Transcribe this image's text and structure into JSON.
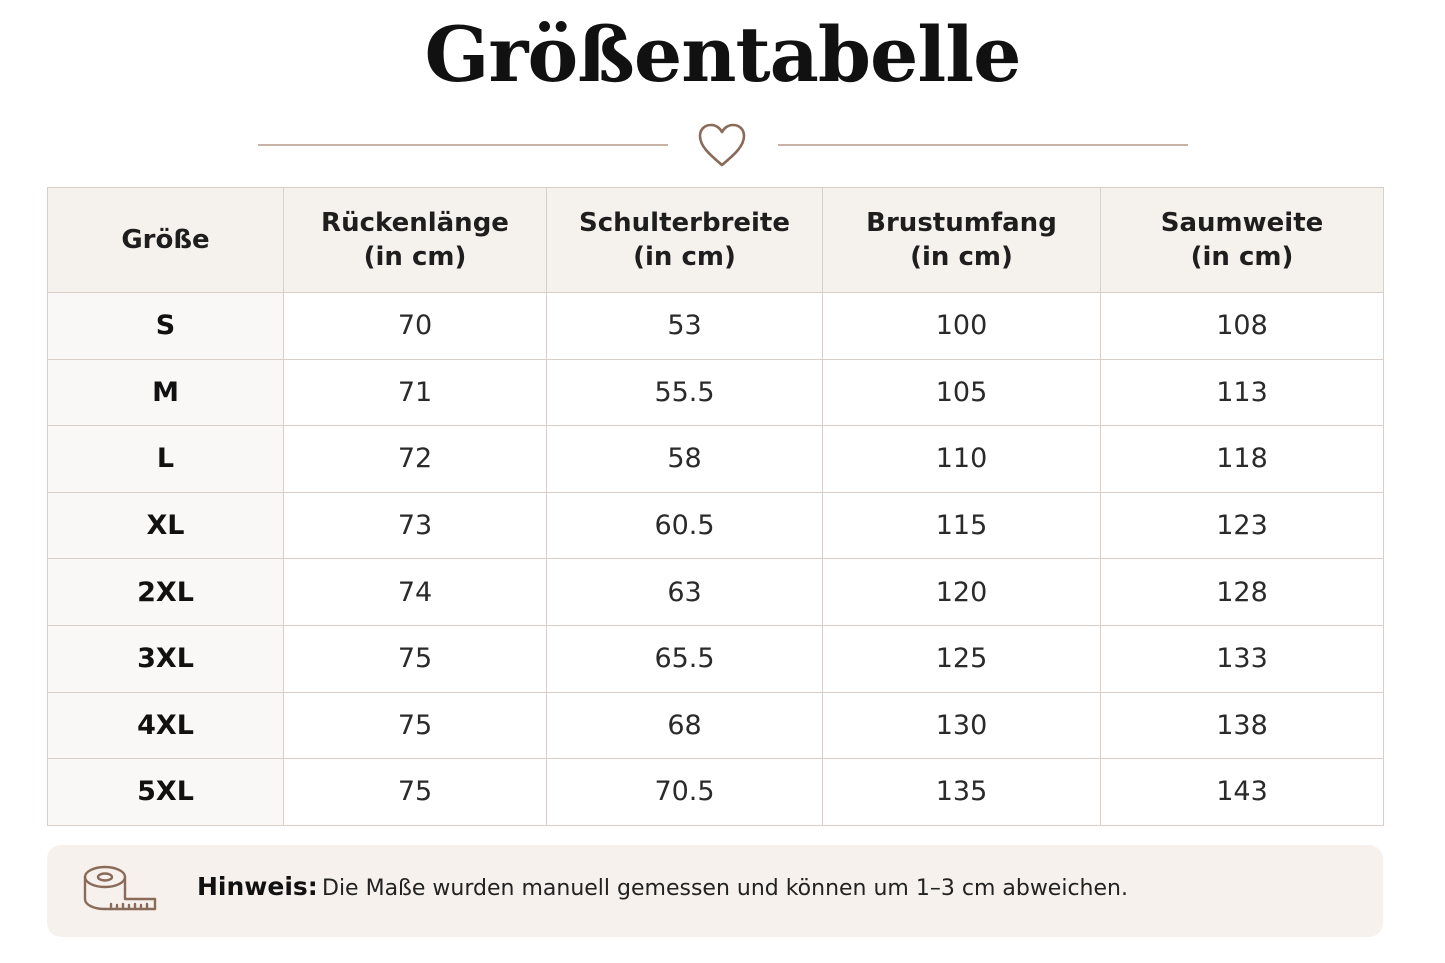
{
  "title": "Größentabelle",
  "colors": {
    "accent": "#c9b3a6",
    "header_bg": "#f5f1ed",
    "note_bg": "#f6f1ec",
    "icon": "#8a6a58"
  },
  "icons": {
    "divider": "heart-icon",
    "note": "measuring-tape-icon"
  },
  "table": {
    "headers": [
      {
        "line1": "Größe",
        "line2": ""
      },
      {
        "line1": "Rückenlänge",
        "line2": "(in cm)"
      },
      {
        "line1": "Schulterbreite",
        "line2": "(in cm)"
      },
      {
        "line1": "Brustumfang",
        "line2": "(in cm)"
      },
      {
        "line1": "Saumweite",
        "line2": "(in cm)"
      }
    ],
    "rows": [
      [
        "S",
        "70",
        "53",
        "100",
        "108"
      ],
      [
        "M",
        "71",
        "55.5",
        "105",
        "113"
      ],
      [
        "L",
        "72",
        "58",
        "110",
        "118"
      ],
      [
        "XL",
        "73",
        "60.5",
        "115",
        "123"
      ],
      [
        "2XL",
        "74",
        "63",
        "120",
        "128"
      ],
      [
        "3XL",
        "75",
        "65.5",
        "125",
        "133"
      ],
      [
        "4XL",
        "75",
        "68",
        "130",
        "138"
      ],
      [
        "5XL",
        "75",
        "70.5",
        "135",
        "143"
      ]
    ]
  },
  "note": {
    "label": "Hinweis:",
    "text": "Die Maße wurden manuell gemessen und können um 1–3 cm abweichen."
  }
}
